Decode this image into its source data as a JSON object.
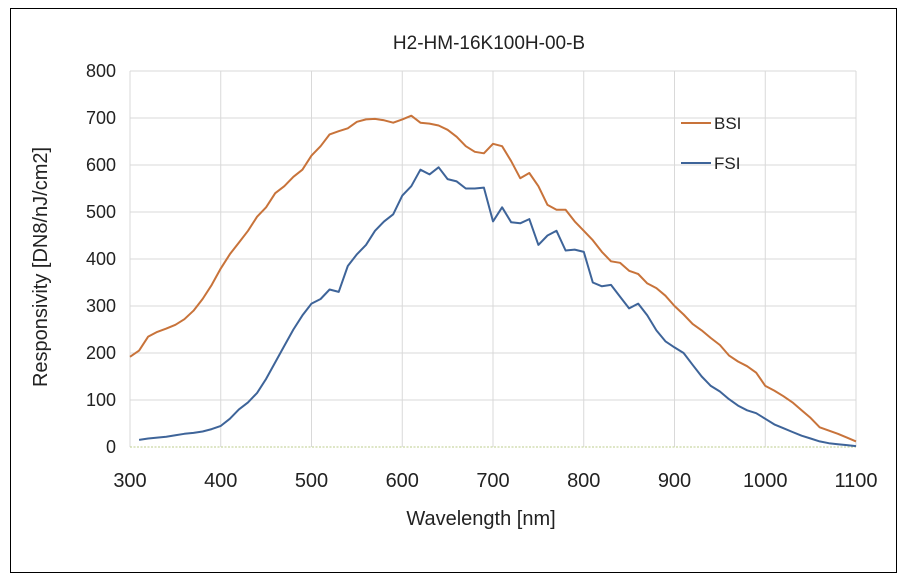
{
  "chart_data": {
    "type": "line",
    "title": "H2-HM-16K100H-00-B",
    "xlabel": "Wavelength [nm]",
    "ylabel": "Responsivity [DN8/nJ/cm2]",
    "xlim": [
      300,
      1100
    ],
    "ylim": [
      0,
      800
    ],
    "xticks": [
      "300",
      "400",
      "500",
      "600",
      "700",
      "800",
      "900",
      "1000",
      "1100"
    ],
    "yticks": [
      "0",
      "100",
      "200",
      "300",
      "400",
      "500",
      "600",
      "700",
      "800"
    ],
    "grid": true,
    "legend_position": "top-right",
    "series": [
      {
        "name": "BSI",
        "color": "#C8733A",
        "x": [
          300,
          310,
          320,
          330,
          340,
          350,
          360,
          370,
          380,
          390,
          400,
          410,
          420,
          430,
          440,
          450,
          460,
          470,
          480,
          490,
          500,
          510,
          520,
          530,
          540,
          550,
          560,
          570,
          580,
          590,
          600,
          610,
          620,
          630,
          640,
          650,
          660,
          670,
          680,
          690,
          700,
          710,
          720,
          730,
          740,
          750,
          760,
          770,
          780,
          790,
          800,
          810,
          820,
          830,
          840,
          850,
          860,
          870,
          880,
          890,
          900,
          910,
          920,
          930,
          940,
          950,
          960,
          970,
          980,
          990,
          1000,
          1010,
          1020,
          1030,
          1040,
          1050,
          1060,
          1070,
          1080,
          1090,
          1100
        ],
        "values": [
          192,
          205,
          235,
          245,
          252,
          260,
          272,
          290,
          315,
          345,
          380,
          410,
          435,
          460,
          490,
          510,
          540,
          555,
          575,
          590,
          620,
          640,
          665,
          672,
          678,
          692,
          697,
          698,
          695,
          690,
          697,
          705,
          690,
          688,
          684,
          675,
          660,
          640,
          628,
          625,
          645,
          640,
          608,
          572,
          583,
          555,
          515,
          505,
          505,
          480,
          460,
          440,
          415,
          395,
          392,
          375,
          368,
          348,
          338,
          322,
          300,
          282,
          262,
          248,
          232,
          217,
          195,
          182,
          172,
          158,
          130,
          120,
          108,
          95,
          78,
          62,
          42,
          35,
          28,
          20,
          12
        ]
      },
      {
        "name": "FSI",
        "color": "#3E6499",
        "x": [
          310,
          320,
          330,
          340,
          350,
          360,
          370,
          380,
          390,
          400,
          410,
          420,
          430,
          440,
          450,
          460,
          470,
          480,
          490,
          500,
          510,
          520,
          530,
          540,
          550,
          560,
          570,
          580,
          590,
          600,
          610,
          620,
          630,
          640,
          650,
          660,
          670,
          680,
          690,
          700,
          710,
          720,
          730,
          740,
          750,
          760,
          770,
          780,
          790,
          800,
          810,
          820,
          830,
          840,
          850,
          860,
          870,
          880,
          890,
          900,
          910,
          920,
          930,
          940,
          950,
          960,
          970,
          980,
          990,
          1000,
          1010,
          1020,
          1030,
          1040,
          1050,
          1060,
          1070,
          1080,
          1090,
          1100
        ],
        "values": [
          15,
          18,
          20,
          22,
          25,
          28,
          30,
          33,
          38,
          45,
          60,
          80,
          95,
          115,
          145,
          180,
          215,
          250,
          280,
          305,
          315,
          335,
          330,
          385,
          410,
          430,
          460,
          480,
          495,
          535,
          555,
          590,
          580,
          595,
          570,
          565,
          550,
          550,
          552,
          480,
          510,
          478,
          476,
          485,
          430,
          450,
          460,
          418,
          420,
          415,
          350,
          342,
          345,
          320,
          295,
          305,
          280,
          248,
          225,
          212,
          200,
          175,
          150,
          130,
          118,
          102,
          88,
          78,
          72,
          60,
          48,
          40,
          32,
          24,
          18,
          12,
          8,
          6,
          4,
          2
        ]
      }
    ]
  }
}
